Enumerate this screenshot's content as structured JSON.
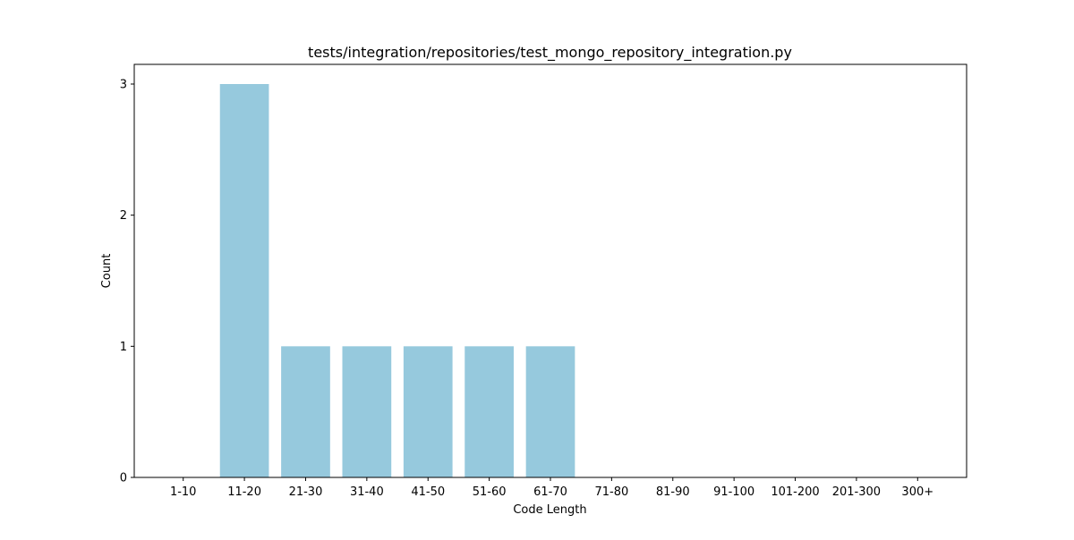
{
  "chart_data": {
    "type": "bar",
    "title": "tests/integration/repositories/test_mongo_repository_integration.py",
    "xlabel": "Code Length",
    "ylabel": "Count",
    "categories": [
      "1-10",
      "11-20",
      "21-30",
      "31-40",
      "41-50",
      "51-60",
      "61-70",
      "71-80",
      "81-90",
      "91-100",
      "101-200",
      "201-300",
      "300+"
    ],
    "values": [
      0,
      3,
      1,
      1,
      1,
      1,
      1,
      0,
      0,
      0,
      0,
      0,
      0
    ],
    "ylim": [
      0,
      3.15
    ],
    "yticks": [
      0,
      1,
      2,
      3
    ],
    "bar_color": "#96c9dd",
    "grid": false,
    "legend": "none"
  }
}
